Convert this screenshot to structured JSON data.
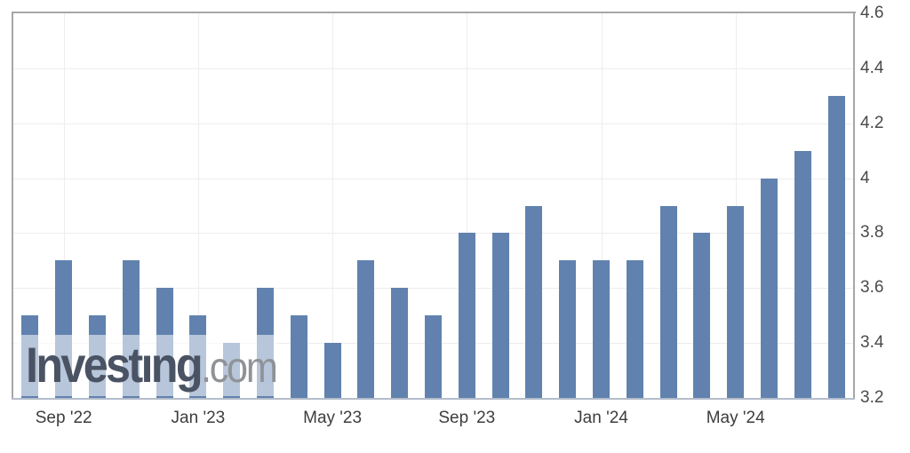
{
  "watermark": {
    "brand": "Investing",
    "suffix": ".com",
    "brand_color": "#4a5363",
    "suffix_color": "#8f9398",
    "tittle_color": "#f2a43c"
  },
  "chart_data": {
    "type": "bar",
    "title": "",
    "xlabel": "",
    "ylabel": "",
    "values": [
      3.5,
      3.7,
      3.5,
      3.7,
      3.6,
      3.5,
      3.4,
      3.6,
      3.5,
      3.4,
      3.7,
      3.6,
      3.5,
      3.8,
      3.8,
      3.9,
      3.7,
      3.7,
      3.7,
      3.9,
      3.8,
      3.9,
      4.0,
      4.1,
      4.3
    ],
    "x_ticks": [
      {
        "label": "Sep '22",
        "bar_index": 1
      },
      {
        "label": "Jan '23",
        "bar_index": 5
      },
      {
        "label": "May '23",
        "bar_index": 9
      },
      {
        "label": "Sep '23",
        "bar_index": 13
      },
      {
        "label": "Jan '24",
        "bar_index": 17
      },
      {
        "label": "May '24",
        "bar_index": 21
      }
    ],
    "y_ticks": [
      {
        "label": "4.6",
        "value": 4.6
      },
      {
        "label": "4.4",
        "value": 4.4
      },
      {
        "label": "4.2",
        "value": 4.2
      },
      {
        "label": "4",
        "value": 4.0
      },
      {
        "label": "3.8",
        "value": 3.8
      },
      {
        "label": "3.6",
        "value": 3.6
      },
      {
        "label": "3.4",
        "value": 3.4
      },
      {
        "label": "3.2",
        "value": 3.2
      }
    ],
    "ylim": [
      3.2,
      4.6
    ],
    "y_axis_side": "right",
    "grid": true,
    "legend": false,
    "colors": {
      "bar": "#6182ae",
      "gridline": "#ededed",
      "plot_border": "#a7a7a7",
      "x_axis_line": "#b4bdcb",
      "y_tick_label": "#4a4a4a",
      "x_tick_label": "#3d3d3d"
    }
  }
}
